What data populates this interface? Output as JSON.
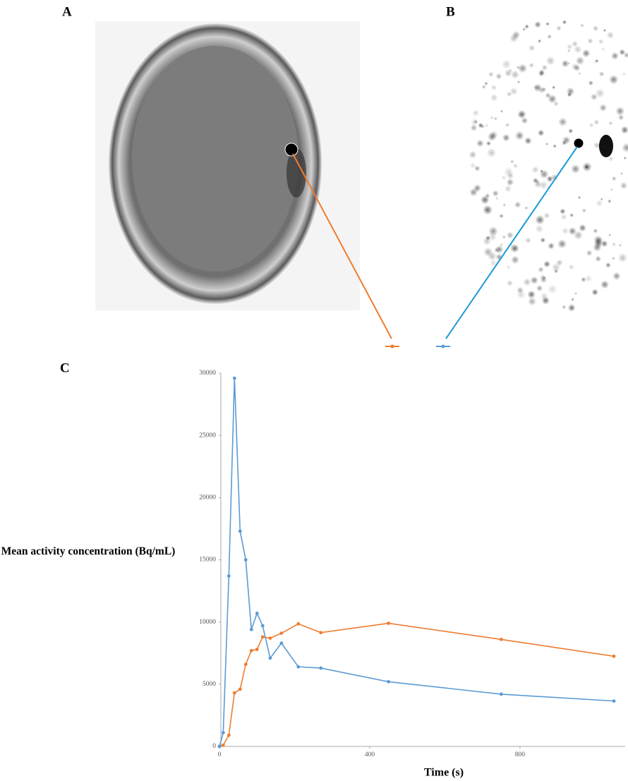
{
  "panels": [
    "A",
    "B",
    "C"
  ],
  "chart_data": {
    "type": "line",
    "x_label": "Time (s)",
    "y_label": "Mean activity concentration (Bq/mL)",
    "x": [
      0,
      10,
      25,
      40,
      55,
      70,
      85,
      100,
      115,
      135,
      165,
      210,
      270,
      450,
      750,
      1050
    ],
    "series": [
      {
        "color": "#ed7d31",
        "values": [
          0,
          100,
          900,
          4300,
          4600,
          6600,
          7700,
          7800,
          8800,
          8700,
          9100,
          9850,
          9150,
          9900,
          8600,
          7250
        ]
      },
      {
        "color": "#5b9bd5",
        "values": [
          0,
          1100,
          13700,
          29600,
          17300,
          15000,
          9400,
          10700,
          9700,
          7100,
          8300,
          6400,
          6300,
          5200,
          4200,
          3650
        ]
      }
    ],
    "xlim": [
      0,
      1080
    ],
    "xticks": [
      0,
      400,
      800
    ],
    "ylim": [
      0,
      30000
    ],
    "yticks": [
      0,
      5000,
      10000,
      15000,
      20000,
      25000,
      30000
    ]
  }
}
